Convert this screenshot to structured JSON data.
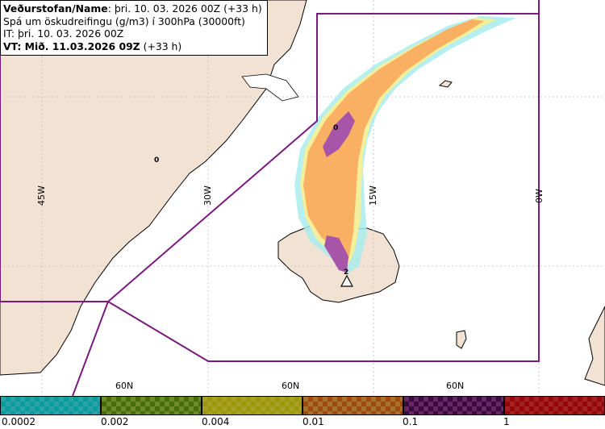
{
  "header": {
    "line1_bold": "Veðurstofan/Name",
    "line1_rest": ": þri. 10. 03. 2026 00Z (+33 h)",
    "line2": "Spá um öskudreifingu (g/m3) í 300hPa (30000ft)",
    "line3": "IT: þri. 10. 03. 2026 00Z",
    "line4_bold": "VT: Mið. 11.03.2026 09Z",
    "line4_rest": " (+33 h)"
  },
  "longitude_labels": [
    "45W",
    "30W",
    "15W",
    "0W"
  ],
  "latitude_labels": [
    "60N",
    "60N",
    "60N"
  ],
  "station_marks": [
    "0",
    "0",
    "2"
  ],
  "legend": {
    "ticks": [
      "0.0002",
      "0.002",
      "0.004",
      "0.01",
      "0.1",
      "1"
    ],
    "bins": [
      {
        "color": "#36c7c9"
      },
      {
        "color": "#86a832"
      },
      {
        "color": "#c9c42f"
      },
      {
        "color": "#c98a3a"
      },
      {
        "color": "#7b2f7d"
      },
      {
        "color": "#c42a2d"
      }
    ]
  },
  "colors": {
    "land": "#f2e2d4",
    "sea": "#ffffff",
    "boundary": "#7a1a7f",
    "ash_orange": "#f9b063",
    "ash_light_orange": "#fbd49a",
    "ash_yellow": "#f4ef9a",
    "ash_cyan": "#a9ecec",
    "ash_purple": "#a655a8"
  },
  "volcano_icon": "warning-triangle-icon"
}
